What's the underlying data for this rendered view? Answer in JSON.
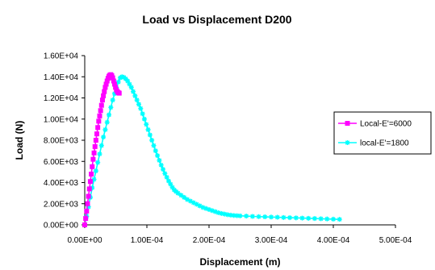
{
  "chart_data": {
    "type": "scatter",
    "title": "Load vs Displacement D200",
    "xlabel": "Displacement (m)",
    "ylabel": "Load (N)",
    "xlim": [
      0,
      0.0005
    ],
    "ylim": [
      0,
      16000
    ],
    "x_ticks": [
      0,
      0.0001,
      0.0002,
      0.0003,
      0.0004,
      0.0005
    ],
    "x_tick_labels": [
      "0.00E+00",
      "1.00E-04",
      "2.00E-04",
      "3.00E-04",
      "4.00E-04",
      "5.00E-04"
    ],
    "y_ticks": [
      0,
      2000,
      4000,
      6000,
      8000,
      10000,
      12000,
      14000,
      16000
    ],
    "y_tick_labels": [
      "0.00E+00",
      "2.00E+03",
      "4.00E+03",
      "6.00E+03",
      "8.00E+03",
      "1.00E+04",
      "1.20E+04",
      "1.40E+04",
      "1.60E+04"
    ],
    "grid": false,
    "legend_position": "right",
    "series": [
      {
        "name": "Local-E'=6000",
        "color": "#FF00FF",
        "marker": "square",
        "x": [
          0,
          1.5e-06,
          3e-06,
          4.5e-06,
          6e-06,
          7.5e-06,
          9e-06,
          1.05e-05,
          1.2e-05,
          1.35e-05,
          1.5e-05,
          1.65e-05,
          1.8e-05,
          1.95e-05,
          2.1e-05,
          2.25e-05,
          2.4e-05,
          2.55e-05,
          2.7e-05,
          2.85e-05,
          3e-05,
          3.15e-05,
          3.3e-05,
          3.45e-05,
          3.6e-05,
          3.75e-05,
          3.9e-05,
          4.05e-05,
          4.2e-05,
          4.35e-05,
          4.5e-05,
          4.65e-05,
          4.8e-05,
          4.95e-05,
          5.1e-05,
          5.25e-05,
          5.4e-05,
          5.55e-05
        ],
        "y": [
          0,
          600,
          1300,
          2000,
          2700,
          3400,
          4100,
          4800,
          5500,
          6200,
          6800,
          7400,
          8000,
          8600,
          9200,
          9800,
          10300,
          10800,
          11300,
          11800,
          12200,
          12600,
          13000,
          13300,
          13600,
          13850,
          14050,
          14150,
          14200,
          14100,
          13900,
          13600,
          13300,
          13000,
          12750,
          12600,
          12500,
          12450
        ]
      },
      {
        "name": "local-E'=1800",
        "color": "#00FFFF",
        "marker": "star",
        "x": [
          0,
          3e-06,
          6e-06,
          9e-06,
          1.2e-05,
          1.5e-05,
          1.8e-05,
          2.1e-05,
          2.4e-05,
          2.7e-05,
          3e-05,
          3.3e-05,
          3.6e-05,
          3.9e-05,
          4.2e-05,
          4.5e-05,
          4.8e-05,
          5.1e-05,
          5.4e-05,
          5.7e-05,
          6e-05,
          6.3e-05,
          6.6e-05,
          6.9e-05,
          7.2e-05,
          7.5e-05,
          7.8e-05,
          8.1e-05,
          8.4e-05,
          8.7e-05,
          9e-05,
          9.3e-05,
          9.6e-05,
          9.9e-05,
          0.000102,
          0.000105,
          0.000108,
          0.000111,
          0.000114,
          0.000117,
          0.00012,
          0.000123,
          0.000126,
          0.000129,
          0.000132,
          0.000135,
          0.000138,
          0.000141,
          0.000144,
          0.000147,
          0.00015,
          0.000155,
          0.00016,
          0.000165,
          0.00017,
          0.000175,
          0.00018,
          0.000185,
          0.00019,
          0.000195,
          0.0002,
          0.000205,
          0.00021,
          0.000215,
          0.00022,
          0.000225,
          0.00023,
          0.000235,
          0.00024,
          0.000245,
          0.00025,
          0.00026,
          0.00027,
          0.00028,
          0.00029,
          0.0003,
          0.00031,
          0.00032,
          0.00033,
          0.00034,
          0.00035,
          0.00036,
          0.00037,
          0.00038,
          0.00039,
          0.0004,
          0.00041
        ],
        "y": [
          0,
          800,
          1700,
          2600,
          3500,
          4300,
          5100,
          5900,
          6700,
          7500,
          8300,
          9000,
          9700,
          10400,
          11100,
          11800,
          12400,
          13000,
          13500,
          13900,
          14000,
          13950,
          13800,
          13600,
          13300,
          13000,
          12600,
          12200,
          11800,
          11400,
          11000,
          10500,
          10000,
          9500,
          9000,
          8500,
          8000,
          7500,
          7000,
          6550,
          6100,
          5650,
          5250,
          4850,
          4500,
          4150,
          3850,
          3550,
          3300,
          3150,
          3000,
          2800,
          2600,
          2400,
          2250,
          2100,
          1950,
          1800,
          1650,
          1550,
          1450,
          1350,
          1250,
          1150,
          1080,
          1020,
          960,
          920,
          890,
          870,
          850,
          830,
          800,
          780,
          760,
          740,
          720,
          700,
          680,
          660,
          640,
          620,
          600,
          580,
          560,
          540,
          520
        ]
      }
    ]
  }
}
